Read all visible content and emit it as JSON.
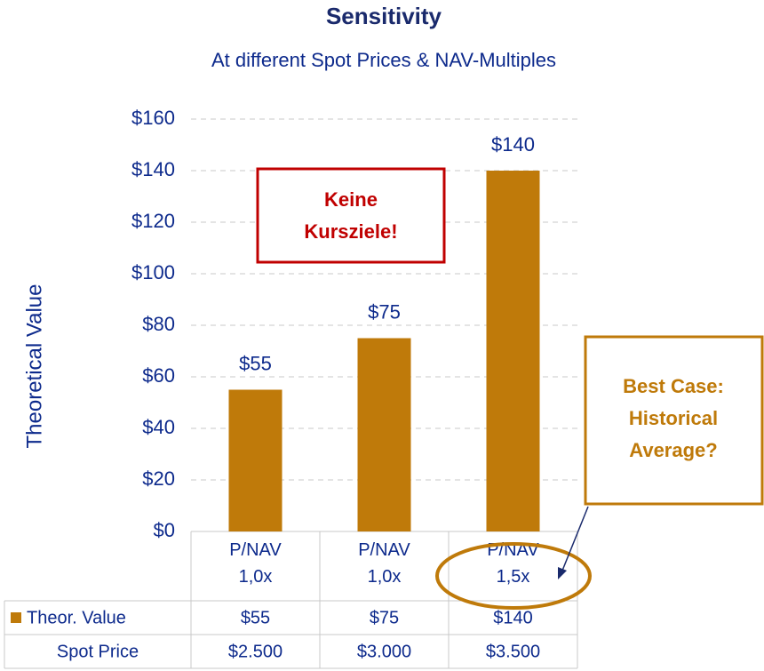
{
  "chart_data": {
    "type": "bar",
    "title": "Sensitivity",
    "subtitle": "At different Spot Prices & NAV-Multiples",
    "y_label": "Theoretical Value",
    "categories": [
      "P/NAV 1,0x",
      "P/NAV 1,0x",
      "P/NAV 1,5x"
    ],
    "series": [
      {
        "name": "Theor. Value",
        "color": "#bf7a0a",
        "values": [
          55,
          75,
          140
        ],
        "value_labels": [
          "$55",
          "$75",
          "$140"
        ]
      }
    ],
    "spot_price": {
      "name": "Spot Price",
      "values": [
        2500,
        3000,
        3500
      ],
      "value_labels": [
        "$2.500",
        "$3.000",
        "$3.500"
      ]
    },
    "ylim": [
      0,
      160
    ],
    "yticks": [
      {
        "value": 0,
        "label": "$0"
      },
      {
        "value": 20,
        "label": "$20"
      },
      {
        "value": 40,
        "label": "$40"
      },
      {
        "value": 60,
        "label": "$60"
      },
      {
        "value": 80,
        "label": "$80"
      },
      {
        "value": 100,
        "label": "$100"
      },
      {
        "value": 120,
        "label": "$120"
      },
      {
        "value": 140,
        "label": "$140"
      },
      {
        "value": 160,
        "label": "$160"
      }
    ],
    "grid": true,
    "annotations": [
      {
        "text": [
          "Keine",
          "Kursziele!"
        ],
        "color": "#c00000"
      },
      {
        "text": [
          "Best Case:",
          "Historical",
          "Average?"
        ],
        "color": "#bf7a0a"
      }
    ]
  }
}
